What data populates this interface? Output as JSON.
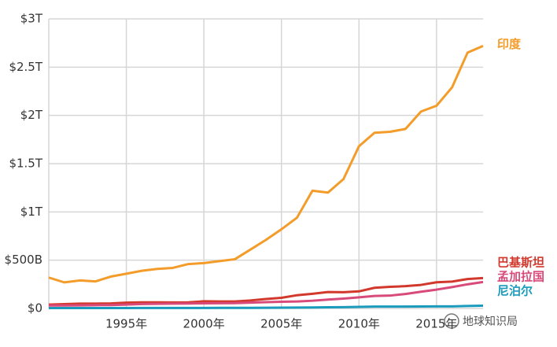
{
  "chart_data": {
    "type": "line",
    "x": [
      1990,
      1991,
      1992,
      1993,
      1994,
      1995,
      1996,
      1997,
      1998,
      1999,
      2000,
      2001,
      2002,
      2003,
      2004,
      2005,
      2006,
      2007,
      2008,
      2009,
      2010,
      2011,
      2012,
      2013,
      2014,
      2015,
      2016,
      2017,
      2018
    ],
    "xlim": [
      1990,
      2018
    ],
    "xticks": [
      {
        "value": 1995,
        "label": "1995年"
      },
      {
        "value": 2000,
        "label": "2000年"
      },
      {
        "value": 2005,
        "label": "2005年"
      },
      {
        "value": 2010,
        "label": "2010年"
      },
      {
        "value": 2015,
        "label": "2015年"
      }
    ],
    "ylim": [
      0,
      3000000000000.0
    ],
    "yticks": [
      {
        "value": 0,
        "label": "$0"
      },
      {
        "value": 500000000000.0,
        "label": "$500B"
      },
      {
        "value": 1000000000000.0,
        "label": "$1T"
      },
      {
        "value": 1500000000000.0,
        "label": "$1.5T"
      },
      {
        "value": 2000000000000.0,
        "label": "$2T"
      },
      {
        "value": 2500000000000.0,
        "label": "$2.5T"
      },
      {
        "value": 3000000000000.0,
        "label": "$3T"
      }
    ],
    "grid": true,
    "series": [
      {
        "name": "印度",
        "color": "#f39c2a",
        "values": [
          320000000000.0,
          270000000000.0,
          290000000000.0,
          280000000000.0,
          330000000000.0,
          360000000000.0,
          390000000000.0,
          410000000000.0,
          420000000000.0,
          460000000000.0,
          470000000000.0,
          490000000000.0,
          510000000000.0,
          610000000000.0,
          710000000000.0,
          820000000000.0,
          940000000000.0,
          1220000000000.0,
          1200000000000.0,
          1340000000000.0,
          1680000000000.0,
          1820000000000.0,
          1830000000000.0,
          1860000000000.0,
          2040000000000.0,
          2100000000000.0,
          2290000000000.0,
          2650000000000.0,
          2720000000000.0
        ]
      },
      {
        "name": "巴基斯坦",
        "color": "#d2382c",
        "values": [
          40000000000.0,
          45000000000.0,
          50000000000.0,
          50000000000.0,
          52000000000.0,
          60000000000.0,
          63000000000.0,
          63000000000.0,
          62000000000.0,
          63000000000.0,
          74000000000.0,
          72000000000.0,
          72000000000.0,
          83000000000.0,
          98000000000.0,
          110000000000.0,
          137000000000.0,
          152000000000.0,
          170000000000.0,
          168000000000.0,
          177000000000.0,
          214000000000.0,
          224000000000.0,
          231000000000.0,
          244000000000.0,
          271000000000.0,
          278000000000.0,
          305000000000.0,
          315000000000.0
        ]
      },
      {
        "name": "孟加拉国",
        "color": "#d84a7a",
        "values": [
          31000000000.0,
          31000000000.0,
          32000000000.0,
          34000000000.0,
          35000000000.0,
          40000000000.0,
          46000000000.0,
          48000000000.0,
          50000000000.0,
          51000000000.0,
          53000000000.0,
          54000000000.0,
          55000000000.0,
          60000000000.0,
          65000000000.0,
          69000000000.0,
          72000000000.0,
          80000000000.0,
          92000000000.0,
          102000000000.0,
          115000000000.0,
          129000000000.0,
          133000000000.0,
          150000000000.0,
          173000000000.0,
          195000000000.0,
          221000000000.0,
          250000000000.0,
          274000000000.0
        ]
      },
      {
        "name": "尼泊尔",
        "color": "#1a9bbd",
        "values": [
          4000000000.0,
          4000000000.0,
          4000000000.0,
          4000000000.0,
          4000000000.0,
          4000000000.0,
          5000000000.0,
          5000000000.0,
          5000000000.0,
          5000000000.0,
          5000000000.0,
          6000000000.0,
          6000000000.0,
          6000000000.0,
          7000000000.0,
          8000000000.0,
          9000000000.0,
          10000000000.0,
          12000000000.0,
          13000000000.0,
          16000000000.0,
          19000000000.0,
          19000000000.0,
          19000000000.0,
          20000000000.0,
          21000000000.0,
          21000000000.0,
          25000000000.0,
          29000000000.0
        ]
      }
    ],
    "watermark": "地球知识局"
  }
}
